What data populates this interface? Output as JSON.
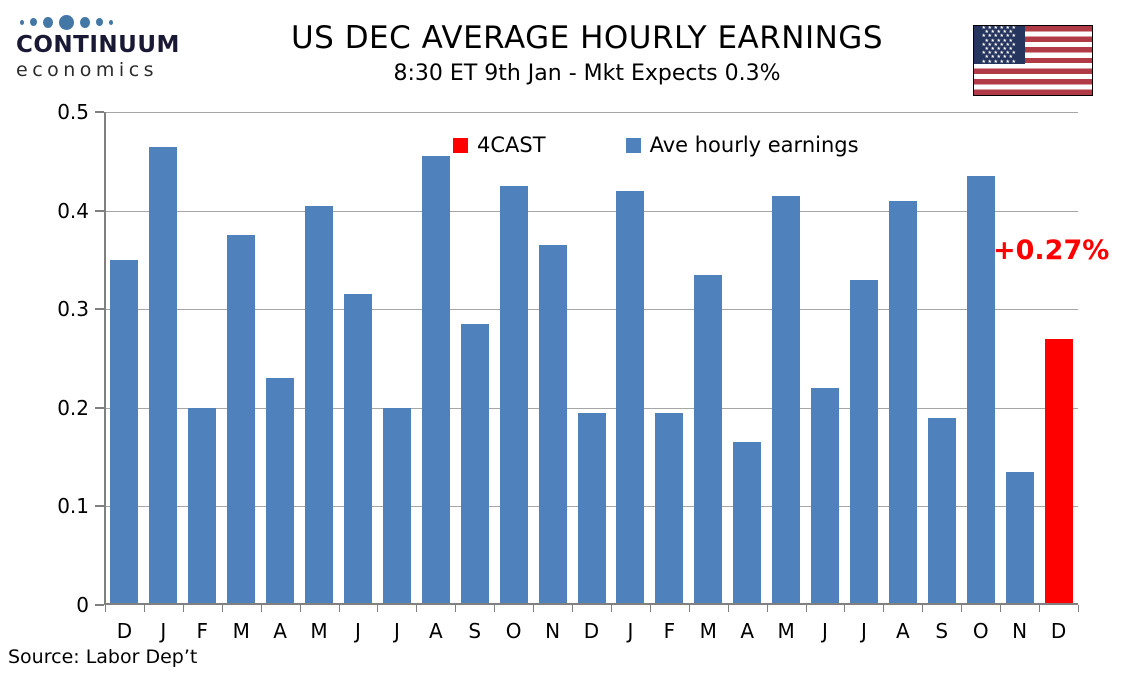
{
  "logo": {
    "name": "CONTINUUM",
    "tagline": "economics"
  },
  "header": {
    "title": "US DEC AVERAGE HOURLY EARNINGS",
    "subtitle": "8:30 ET 9th Jan - Mkt Expects 0.3%"
  },
  "flag": {
    "icon": "us-flag",
    "colors": {
      "red": "#B03A45",
      "blue": "#26355E",
      "white": "#FFFFFF"
    }
  },
  "legend": {
    "items": [
      {
        "label": "4CAST",
        "color": "#FF0000"
      },
      {
        "label": "Ave hourly earnings",
        "color": "#4F81BD"
      }
    ]
  },
  "annotation": {
    "label": "+0.27%",
    "color": "#FF0000"
  },
  "source": {
    "label": "Source: Labor Dep’t"
  },
  "colors": {
    "bar": "#4F81BD",
    "forecast": "#FF0000",
    "gridline": "#A6A6A6",
    "axis": "#808080",
    "text": "#000000"
  },
  "chart_data": {
    "type": "bar",
    "title": "US DEC AVERAGE HOURLY EARNINGS",
    "subtitle": "8:30 ET 9th Jan - Mkt Expects 0.3%",
    "xlabel": "",
    "ylabel": "",
    "ylim": [
      0,
      0.5
    ],
    "yticks": [
      0,
      0.1,
      0.2,
      0.3,
      0.4,
      0.5
    ],
    "ytick_labels": [
      "0",
      "0.1",
      "0.2",
      "0.3",
      "0.4",
      "0.5"
    ],
    "grid": true,
    "legend_position": "top-inside",
    "categories": [
      "D",
      "J",
      "F",
      "M",
      "A",
      "M",
      "J",
      "J",
      "A",
      "S",
      "O",
      "N",
      "D",
      "J",
      "F",
      "M",
      "A",
      "M",
      "J",
      "J",
      "A",
      "S",
      "O",
      "N",
      "D"
    ],
    "values": [
      0.35,
      0.465,
      0.2,
      0.375,
      0.23,
      0.405,
      0.315,
      0.2,
      0.455,
      0.285,
      0.425,
      0.365,
      0.195,
      0.42,
      0.195,
      0.335,
      0.165,
      0.415,
      0.22,
      0.33,
      0.41,
      0.19,
      0.435,
      0.135,
      0.27
    ],
    "series_name": "Ave hourly earnings",
    "highlight": {
      "index": 24,
      "series": "4CAST",
      "value": 0.27,
      "color": "#FF0000"
    },
    "annotations": [
      {
        "text": "+0.27%",
        "color": "#FF0000"
      }
    ]
  }
}
